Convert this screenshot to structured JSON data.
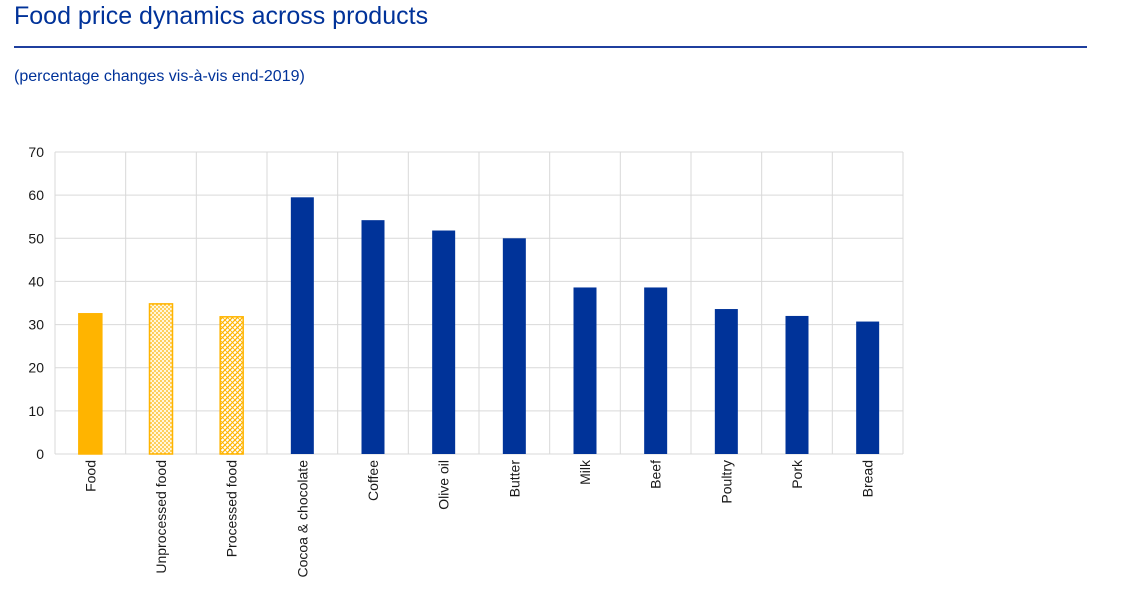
{
  "header": {
    "title": "Food price dynamics across products",
    "subtitle": "(percentage changes vis-à-vis end-2019)"
  },
  "colors": {
    "title": "#003299",
    "bar_blue": "#003399",
    "bar_yellow": "#ffb400",
    "grid": "#d9d9d9"
  },
  "chart_data": {
    "type": "bar",
    "title": "Food price dynamics across products",
    "subtitle": "(percentage changes vis-à-vis end-2019)",
    "xlabel": "",
    "ylabel": "",
    "ylim": [
      0,
      70
    ],
    "yticks": [
      0,
      10,
      20,
      30,
      40,
      50,
      60,
      70
    ],
    "grid": true,
    "legend": "none",
    "categories": [
      "Food",
      "Unprocessed food",
      "Processed food",
      "Cocoa & chocolate",
      "Coffee",
      "Olive oil",
      "Butter",
      "Milk",
      "Beef",
      "Poultry",
      "Pork",
      "Bread"
    ],
    "values": [
      32.5,
      34.8,
      31.8,
      59.5,
      54.2,
      51.8,
      50.0,
      38.6,
      38.6,
      33.6,
      32.0,
      30.7
    ],
    "bar_styles": [
      "solid-yellow",
      "dotted-yellow",
      "hatched-yellow",
      "solid-blue",
      "solid-blue",
      "solid-blue",
      "solid-blue",
      "solid-blue",
      "solid-blue",
      "solid-blue",
      "solid-blue",
      "solid-blue"
    ]
  }
}
